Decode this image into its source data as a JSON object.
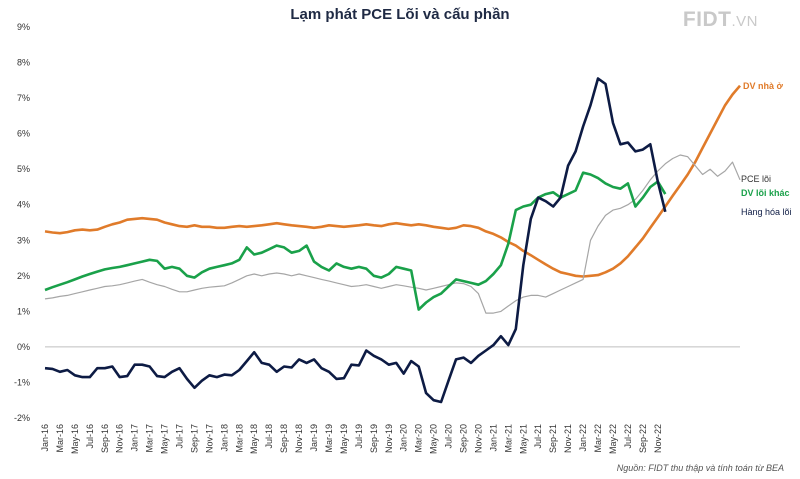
{
  "chart_data": {
    "type": "line",
    "title": "Lạm phát PCE Lõi và cấu phần",
    "ylim": [
      -2,
      9
    ],
    "ytick_labels": [
      "-2%",
      "-1%",
      "0%",
      "1%",
      "2%",
      "3%",
      "4%",
      "5%",
      "6%",
      "7%",
      "8%",
      "9%"
    ],
    "xtick_labels": [
      "Jan-16",
      "Mar-16",
      "May-16",
      "Jul-16",
      "Sep-16",
      "Nov-16",
      "Jan-17",
      "Mar-17",
      "May-17",
      "Jul-17",
      "Sep-17",
      "Nov-17",
      "Jan-18",
      "Mar-18",
      "May-18",
      "Jul-18",
      "Sep-18",
      "Nov-18",
      "Jan-19",
      "Mar-19",
      "May-19",
      "Jul-19",
      "Sep-19",
      "Nov-19",
      "Jan-20",
      "Mar-20",
      "May-20",
      "Jul-20",
      "Sep-20",
      "Nov-20",
      "Jan-21",
      "Mar-21",
      "May-21",
      "Jul-21",
      "Sep-21",
      "Nov-21",
      "Jan-22",
      "Mar-22",
      "May-22",
      "Jul-22",
      "Sep-22",
      "Nov-22"
    ],
    "grid": false,
    "series": [
      {
        "name": "DV nhà ở",
        "color": "#e07b2a",
        "values": [
          3.25,
          3.22,
          3.2,
          3.23,
          3.28,
          3.3,
          3.28,
          3.3,
          3.38,
          3.45,
          3.5,
          3.58,
          3.6,
          3.62,
          3.6,
          3.58,
          3.5,
          3.45,
          3.4,
          3.38,
          3.42,
          3.38,
          3.38,
          3.35,
          3.35,
          3.38,
          3.4,
          3.38,
          3.4,
          3.42,
          3.45,
          3.48,
          3.45,
          3.42,
          3.4,
          3.38,
          3.35,
          3.38,
          3.42,
          3.4,
          3.38,
          3.4,
          3.42,
          3.45,
          3.42,
          3.4,
          3.45,
          3.48,
          3.45,
          3.42,
          3.45,
          3.42,
          3.38,
          3.35,
          3.32,
          3.35,
          3.42,
          3.4,
          3.35,
          3.25,
          3.18,
          3.08,
          2.95,
          2.85,
          2.7,
          2.58,
          2.45,
          2.32,
          2.2,
          2.1,
          2.05,
          2.0,
          1.98,
          2.0,
          2.02,
          2.1,
          2.2,
          2.35,
          2.55,
          2.8,
          3.05,
          3.35,
          3.65,
          3.95,
          4.25,
          4.55,
          4.85,
          5.2,
          5.6,
          6.0,
          6.4,
          6.8,
          7.1,
          7.35
        ]
      },
      {
        "name": "PCE lõi",
        "color": "#a6a6a6",
        "values": [
          1.35,
          1.38,
          1.42,
          1.45,
          1.5,
          1.55,
          1.6,
          1.65,
          1.7,
          1.72,
          1.75,
          1.8,
          1.85,
          1.9,
          1.82,
          1.75,
          1.7,
          1.62,
          1.55,
          1.55,
          1.6,
          1.65,
          1.68,
          1.7,
          1.72,
          1.8,
          1.9,
          2.0,
          2.05,
          2.0,
          2.05,
          2.08,
          2.05,
          2.0,
          2.05,
          2.0,
          1.95,
          1.9,
          1.85,
          1.8,
          1.75,
          1.7,
          1.72,
          1.75,
          1.7,
          1.65,
          1.7,
          1.75,
          1.72,
          1.68,
          1.65,
          1.6,
          1.65,
          1.7,
          1.75,
          1.8,
          1.78,
          1.7,
          1.5,
          0.95,
          0.95,
          1.0,
          1.15,
          1.3,
          1.4,
          1.45,
          1.45,
          1.4,
          1.5,
          1.6,
          1.7,
          1.8,
          1.9,
          3.0,
          3.4,
          3.7,
          3.85,
          3.9,
          4.0,
          4.15,
          4.4,
          4.7,
          4.95,
          5.15,
          5.3,
          5.4,
          5.35,
          5.1,
          4.85,
          5.0,
          4.8,
          4.95,
          5.2,
          4.7
        ]
      },
      {
        "name": "DV lõi khác",
        "color": "#1aa14a",
        "values": [
          1.6,
          1.68,
          1.75,
          1.82,
          1.9,
          1.98,
          2.05,
          2.12,
          2.18,
          2.22,
          2.25,
          2.3,
          2.35,
          2.4,
          2.45,
          2.42,
          2.2,
          2.25,
          2.2,
          2.0,
          1.95,
          2.1,
          2.2,
          2.25,
          2.3,
          2.35,
          2.45,
          2.8,
          2.6,
          2.65,
          2.75,
          2.85,
          2.8,
          2.65,
          2.7,
          2.85,
          2.4,
          2.25,
          2.15,
          2.35,
          2.25,
          2.2,
          2.25,
          2.2,
          2.0,
          1.95,
          2.05,
          2.25,
          2.2,
          2.15,
          1.05,
          1.25,
          1.4,
          1.5,
          1.7,
          1.9,
          1.85,
          1.8,
          1.75,
          1.85,
          2.05,
          2.3,
          2.9,
          3.85,
          3.95,
          4.0,
          4.2,
          4.3,
          4.35,
          4.2,
          4.3,
          4.4,
          4.9,
          4.85,
          4.75,
          4.6,
          4.5,
          4.45,
          4.6,
          3.95,
          4.2,
          4.5,
          4.65,
          4.3
        ]
      },
      {
        "name": "Hàng hóa lõi",
        "color": "#0d1b44",
        "values": [
          -0.6,
          -0.62,
          -0.7,
          -0.65,
          -0.8,
          -0.85,
          -0.85,
          -0.6,
          -0.6,
          -0.55,
          -0.85,
          -0.82,
          -0.5,
          -0.5,
          -0.55,
          -0.82,
          -0.85,
          -0.7,
          -0.6,
          -0.9,
          -1.15,
          -0.95,
          -0.8,
          -0.85,
          -0.78,
          -0.8,
          -0.65,
          -0.4,
          -0.15,
          -0.45,
          -0.5,
          -0.7,
          -0.55,
          -0.58,
          -0.35,
          -0.45,
          -0.35,
          -0.6,
          -0.7,
          -0.9,
          -0.88,
          -0.5,
          -0.52,
          -0.1,
          -0.25,
          -0.35,
          -0.5,
          -0.45,
          -0.75,
          -0.4,
          -0.55,
          -1.3,
          -1.5,
          -1.55,
          -0.95,
          -0.35,
          -0.3,
          -0.45,
          -0.25,
          -0.1,
          0.05,
          0.3,
          0.05,
          0.5,
          2.3,
          3.6,
          4.2,
          4.1,
          3.95,
          4.2,
          5.1,
          5.5,
          6.2,
          6.8,
          7.55,
          7.4,
          6.3,
          5.7,
          5.75,
          5.5,
          5.55,
          5.7,
          4.65,
          3.8
        ]
      }
    ],
    "annotations": {
      "dv_nha_o": "DV nhà ở",
      "pce_loi": "PCE lõi",
      "dv_loi_khac": "DV lõi khác",
      "hang_hoa_loi": "Hàng hóa lõi"
    }
  },
  "logo": {
    "brand": "FIDT",
    "tld": ".VN"
  },
  "source_note": "Nguồn: FIDT thu thập và tính toán từ BEA"
}
